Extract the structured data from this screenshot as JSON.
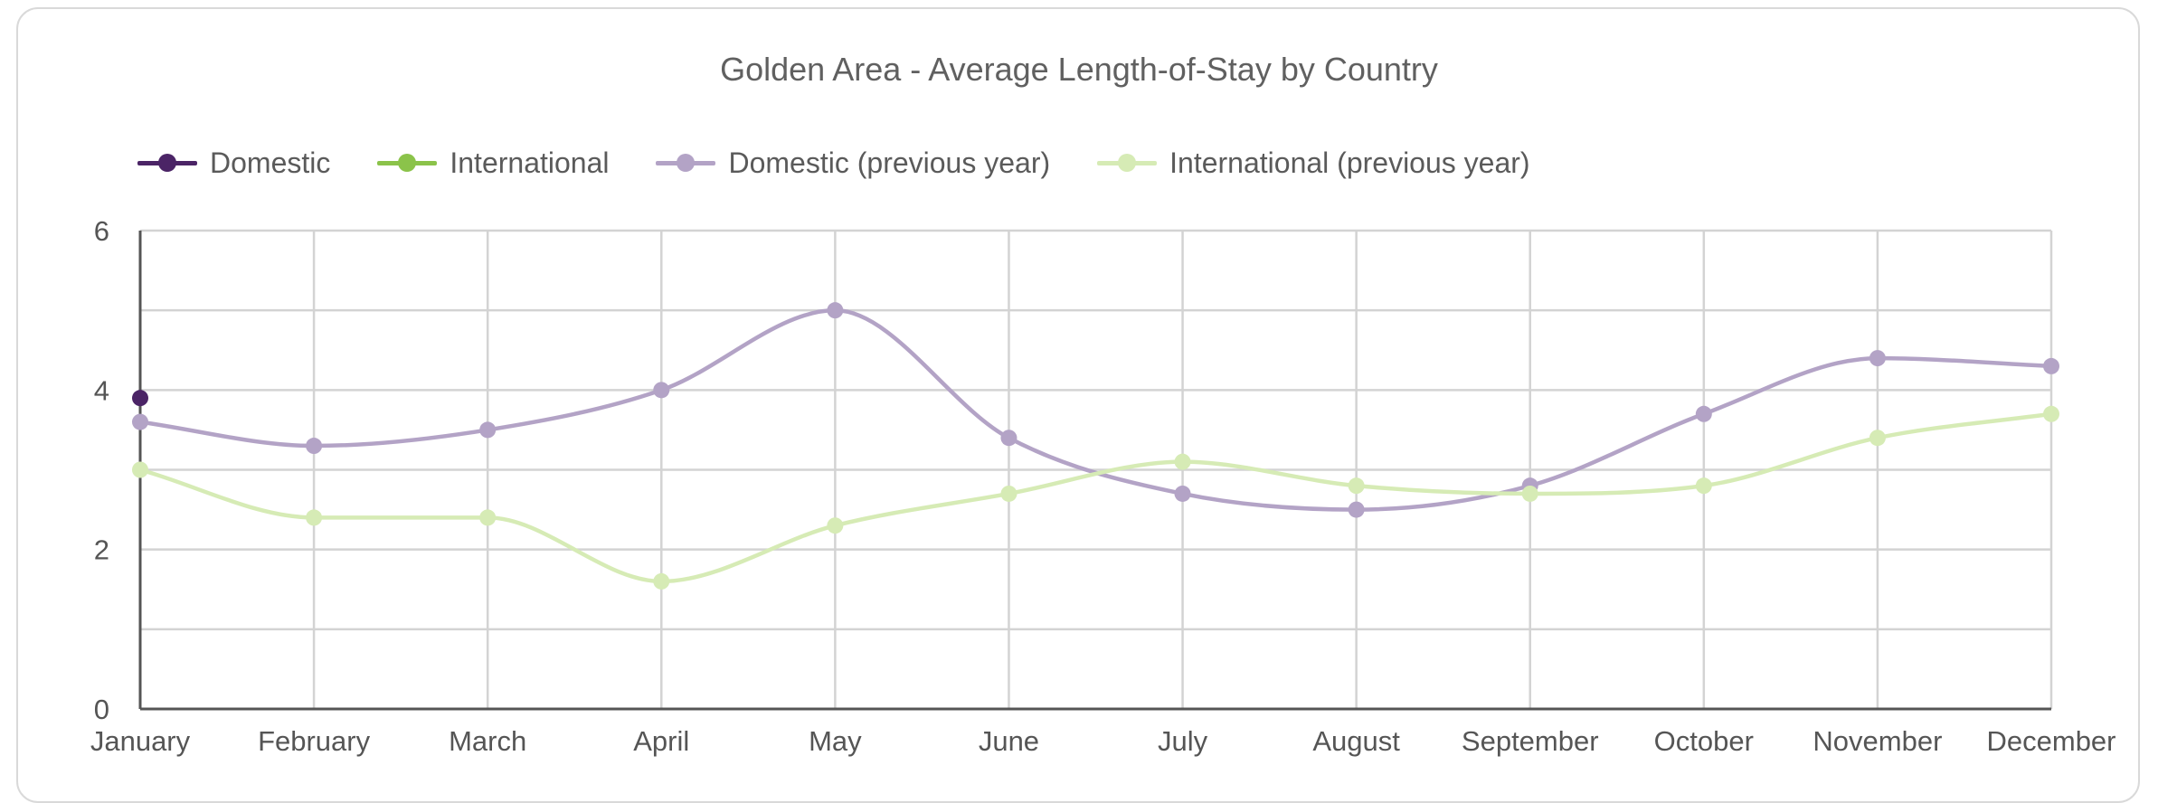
{
  "chart_data": {
    "type": "line",
    "title": "Golden Area - Average Length-of-Stay by Country",
    "xlabel": "",
    "ylabel": "",
    "ylim": [
      0,
      6
    ],
    "yticks": [
      0,
      2,
      4,
      6
    ],
    "grid": true,
    "legend_position": "top-left",
    "categories": [
      "January",
      "February",
      "March",
      "April",
      "May",
      "June",
      "July",
      "August",
      "September",
      "October",
      "November",
      "December"
    ],
    "series": [
      {
        "name": "Domestic",
        "color": "#4b2466",
        "values": [
          3.9,
          null,
          null,
          null,
          null,
          null,
          null,
          null,
          null,
          null,
          null,
          null
        ]
      },
      {
        "name": "International",
        "color": "#8bc34a",
        "values": [
          null,
          null,
          null,
          null,
          null,
          null,
          null,
          null,
          null,
          null,
          null,
          null
        ]
      },
      {
        "name": "Domestic (previous year)",
        "color": "#b3a3c6",
        "values": [
          3.6,
          3.3,
          3.5,
          4.0,
          5.0,
          3.4,
          2.7,
          2.5,
          2.8,
          3.7,
          4.4,
          4.3
        ]
      },
      {
        "name": "International (previous year)",
        "color": "#d6ebb5",
        "values": [
          3.0,
          2.4,
          2.4,
          1.6,
          2.3,
          2.7,
          3.1,
          2.8,
          2.7,
          2.8,
          3.4,
          3.7
        ]
      }
    ]
  }
}
